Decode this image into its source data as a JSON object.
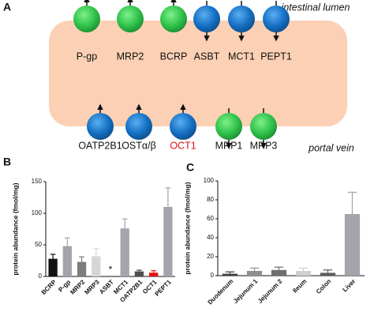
{
  "panels": [
    "A",
    "B",
    "C"
  ],
  "diagram": {
    "lumen_label": "intestinal lumen",
    "vein_label": "portal vein",
    "apical_efflux": [
      "P-gp",
      "MRP2",
      "BCRP"
    ],
    "apical_uptake": [
      "ASBT",
      "MCT1",
      "PEPT1"
    ],
    "basolateral_uptake": [
      "OATP2B1",
      "OSTα/β",
      "OCT1"
    ],
    "basolateral_efflux": [
      "MRP1",
      "MRP3"
    ]
  },
  "chart_data": [
    {
      "type": "bar",
      "y_label": "protein abundance (fmol/mg)",
      "categories": [
        "BCRP",
        "P-gp",
        "MRP2",
        "MRP3",
        "ASBT",
        "MCT1",
        "OATP2B1",
        "OCT1",
        "PEPT1"
      ],
      "values": [
        28,
        48,
        23,
        32,
        null,
        76,
        8,
        6,
        110
      ],
      "errors": [
        7,
        13,
        8,
        12,
        null,
        15,
        2,
        3,
        30
      ],
      "colors": [
        "#111111",
        "#a4a4ad",
        "#7c7c7c",
        "#d6d6d6",
        "#a4a4ad",
        "#a4a4ad",
        "#4e4e4e",
        "#e01010",
        "#a4a4ad"
      ],
      "missing_mark": "*",
      "ylim": [
        0,
        150
      ],
      "yticks": [
        0,
        50,
        100,
        150
      ]
    },
    {
      "type": "bar",
      "y_label": "protein abundance (fmol/mg)",
      "categories": [
        "Duodenum",
        "Jejunum 1",
        "Jejunum 2",
        "Ileum",
        "Colon",
        "Liver"
      ],
      "values": [
        2,
        5,
        6,
        5,
        3,
        65
      ],
      "errors": [
        2,
        3,
        3,
        3,
        3,
        23
      ],
      "colors": [
        "#3c3c3c",
        "#8f8f8f",
        "#6e6e6e",
        "#d0d0d0",
        "#5c5c5c",
        "#a4a4ad"
      ],
      "ylim": [
        0,
        100
      ],
      "yticks": [
        0,
        20,
        40,
        60,
        80,
        100
      ]
    }
  ]
}
